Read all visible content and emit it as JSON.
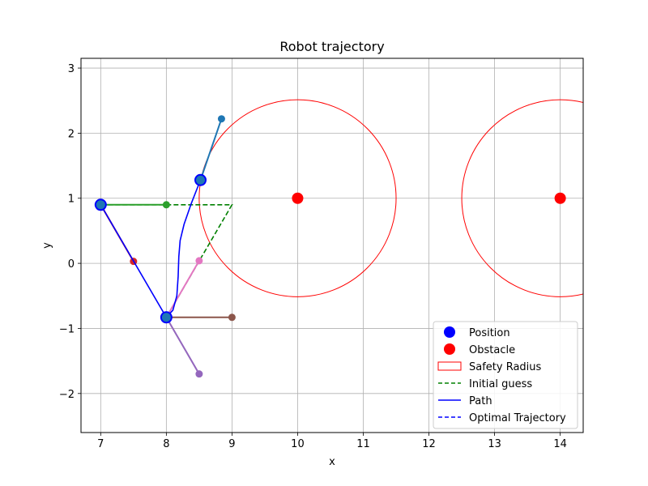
{
  "chart_data": {
    "type": "scatter",
    "title": "Robot trajectory",
    "xlabel": "x",
    "ylabel": "y",
    "xlim": [
      6.7,
      14.35
    ],
    "ylim": [
      -2.6,
      3.15
    ],
    "xticks": [
      7,
      8,
      9,
      10,
      11,
      12,
      13,
      14
    ],
    "yticks": [
      -2,
      -1,
      0,
      1,
      2,
      3
    ],
    "xtick_labels": [
      "7",
      "8",
      "9",
      "10",
      "11",
      "12",
      "13",
      "14"
    ],
    "ytick_labels": [
      "−2",
      "−1",
      "0",
      "1",
      "2",
      "3"
    ],
    "grid": true,
    "legend_position": "bottom-right",
    "obstacles": [
      {
        "x": 10,
        "y": 1,
        "radius": 1.5
      },
      {
        "x": 14,
        "y": 1,
        "radius": 1.5
      }
    ],
    "positions": [
      {
        "x": 7.0,
        "y": 0.9
      },
      {
        "x": 8.0,
        "y": -0.83
      },
      {
        "x": 8.52,
        "y": 1.28
      }
    ],
    "initial_guess": [
      {
        "x": 7.0,
        "y": 0.9
      },
      {
        "x": 9.0,
        "y": 0.9
      },
      {
        "x": 8.0,
        "y": -0.83
      }
    ],
    "path": [
      {
        "x": 7.0,
        "y": 0.9
      },
      {
        "x": 8.0,
        "y": -0.83
      },
      {
        "x": 8.1,
        "y": -0.72
      },
      {
        "x": 8.16,
        "y": -0.5
      },
      {
        "x": 8.18,
        "y": -0.2
      },
      {
        "x": 8.19,
        "y": 0.1
      },
      {
        "x": 8.21,
        "y": 0.35
      },
      {
        "x": 8.27,
        "y": 0.6
      },
      {
        "x": 8.38,
        "y": 0.92
      },
      {
        "x": 8.52,
        "y": 1.28
      }
    ],
    "pose_markers": [
      {
        "from": {
          "x": 7.0,
          "y": 0.9
        },
        "to": {
          "x": 8.0,
          "y": 0.9
        },
        "color": "#2ca02c"
      },
      {
        "from": {
          "x": 7.0,
          "y": 0.9
        },
        "to": {
          "x": 7.5,
          "y": 0.03
        },
        "color": "#d62728"
      },
      {
        "from": {
          "x": 8.0,
          "y": -0.83
        },
        "to": {
          "x": 9.0,
          "y": -0.83
        },
        "color": "#8c564b"
      },
      {
        "from": {
          "x": 8.0,
          "y": -0.83
        },
        "to": {
          "x": 8.5,
          "y": -1.7
        },
        "color": "#9467bd"
      },
      {
        "from": {
          "x": 8.0,
          "y": -0.83
        },
        "to": {
          "x": 8.5,
          "y": 0.04
        },
        "color": "#e377c2"
      },
      {
        "from": {
          "x": 8.52,
          "y": 1.28
        },
        "to": {
          "x": 8.84,
          "y": 2.22
        },
        "color": "#1f77b4"
      }
    ],
    "legend": [
      {
        "label": "Position",
        "kind": "dot",
        "color": "#0000ff"
      },
      {
        "label": "Obstacle",
        "kind": "dot",
        "color": "#ff0000"
      },
      {
        "label": "Safety Radius",
        "kind": "rect",
        "color": "#ff0000"
      },
      {
        "label": "Initial guess",
        "kind": "dash",
        "color": "#008000"
      },
      {
        "label": "Path",
        "kind": "line",
        "color": "#0000ff"
      },
      {
        "label": "Optimal Trajectory",
        "kind": "dash",
        "color": "#0000ff"
      }
    ]
  }
}
